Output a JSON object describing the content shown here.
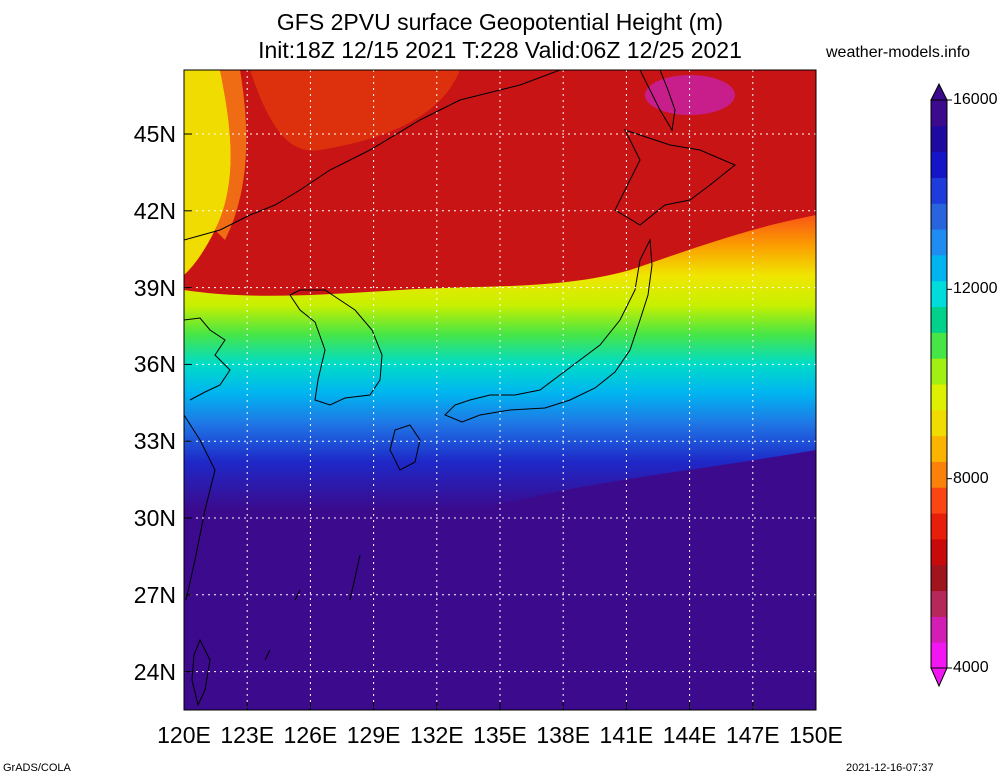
{
  "title": {
    "line1": "GFS 2PVU surface Geopotential Height (m)",
    "line2": "Init:18Z 12/15 2021 T:228 Valid:06Z 12/25 2021"
  },
  "source": "weather-models.info",
  "footer": {
    "left": "GrADS/COLA",
    "right": "2021-12-16-07:37"
  },
  "map": {
    "lat_range": [
      22.5,
      47.5
    ],
    "lon_range": [
      120,
      150
    ],
    "lat_labels": [
      "45N",
      "42N",
      "39N",
      "36N",
      "33N",
      "30N",
      "27N",
      "24N"
    ],
    "lon_labels": [
      "120E",
      "123E",
      "126E",
      "129E",
      "132E",
      "135E",
      "138E",
      "141E",
      "144E",
      "147E",
      "150E"
    ],
    "gridlines": "dotted"
  },
  "colorbar": {
    "labels": [
      "16000",
      "12000",
      "8000",
      "4000"
    ],
    "colors": [
      "#f216f2",
      "#d21eb4",
      "#b4285a",
      "#a0141e",
      "#c80a0a",
      "#e61e0a",
      "#fa4614",
      "#fa820a",
      "#fab400",
      "#f0dc00",
      "#dcf000",
      "#a0f014",
      "#46e646",
      "#00d28c",
      "#00dcdc",
      "#00b4f0",
      "#1e8cf0",
      "#2864dc",
      "#1e3cdc",
      "#1414c8",
      "#1e0aa0",
      "#3c0a8c"
    ]
  }
}
